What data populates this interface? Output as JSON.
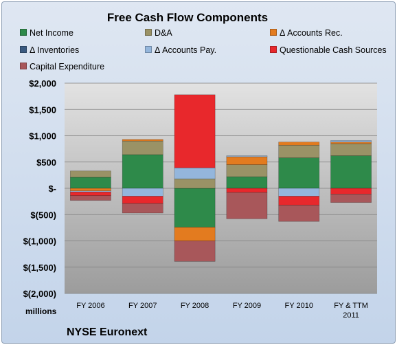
{
  "chart_data": {
    "type": "bar",
    "stacked": true,
    "title": "Free Cash Flow Components",
    "source": "NYSE Euronext",
    "units_label": "millions",
    "categories": [
      "FY 2006",
      "FY 2007",
      "FY 2008",
      "FY 2009",
      "FY 2010",
      "FY & TTM 2011"
    ],
    "ylim": [
      -2000,
      2000
    ],
    "yticks": [
      2000,
      1500,
      1000,
      500,
      0,
      -500,
      -1000,
      -1500,
      -2000
    ],
    "ytick_labels": [
      "$2,000",
      "$1,500",
      "$1,000",
      "$500",
      "$-",
      "$(500)",
      "$(1,000)",
      "$(1,500)",
      "$(2,000)"
    ],
    "grid": true,
    "legend_position": "top",
    "series": [
      {
        "name": "Net Income",
        "color": "#2e8a4a",
        "values": [
          210,
          640,
          -740,
          220,
          580,
          620
        ]
      },
      {
        "name": "D&A",
        "color": "#9a9266",
        "values": [
          120,
          260,
          180,
          230,
          240,
          230
        ]
      },
      {
        "name": "Δ Accounts Rec.",
        "color": "#e37b1f",
        "values": [
          -50,
          30,
          -260,
          150,
          60,
          30
        ]
      },
      {
        "name": "Δ Inventories",
        "color": "#3a5a80",
        "values": [
          0,
          0,
          0,
          0,
          0,
          0
        ]
      },
      {
        "name": "Δ Accounts Pay.",
        "color": "#94b6dc",
        "values": [
          -20,
          -150,
          210,
          20,
          -150,
          30
        ]
      },
      {
        "name": "Questionable Cash Sources",
        "color": "#e8282c",
        "values": [
          -70,
          -140,
          1390,
          -80,
          -170,
          -110
        ]
      },
      {
        "name": "Capital Expenditure",
        "color": "#a8575a",
        "values": [
          -90,
          -180,
          -390,
          -500,
          -310,
          -160
        ]
      }
    ]
  }
}
